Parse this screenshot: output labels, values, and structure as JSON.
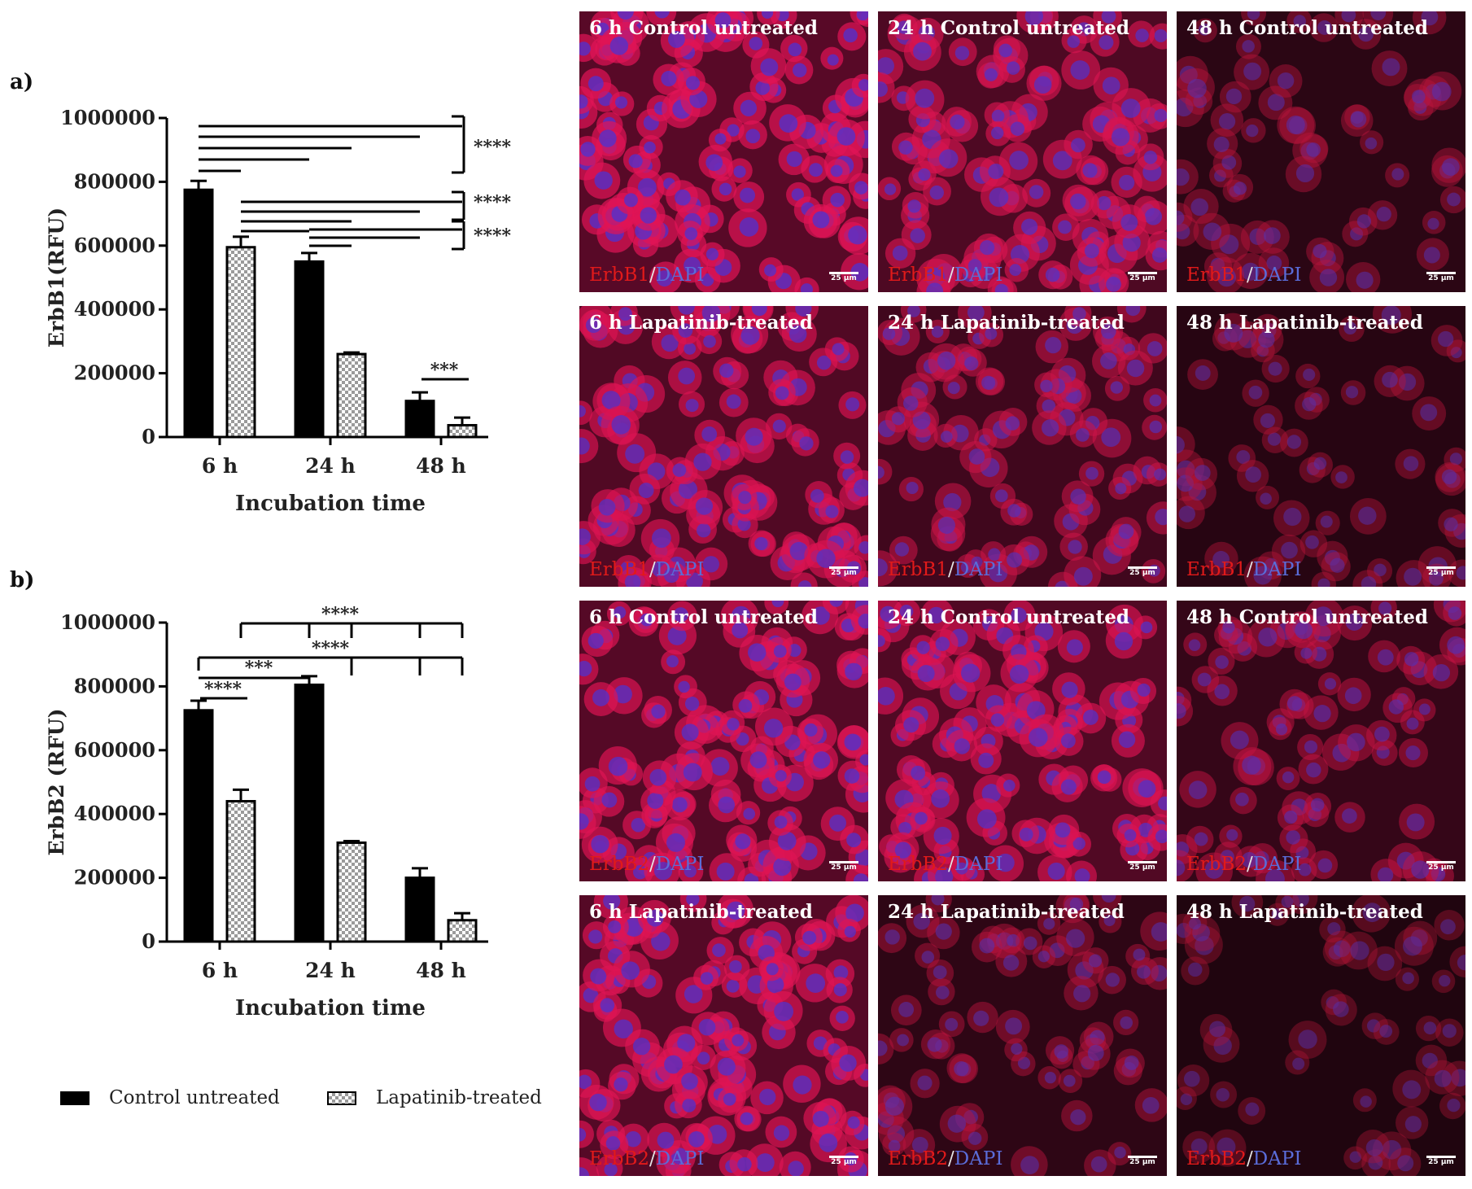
{
  "panels": [
    {
      "label": "a)",
      "top": 0
    },
    {
      "label": "b)",
      "top": 0
    }
  ],
  "legend": {
    "control": "Control untreated",
    "lapatinib": "Lapatinib-treated"
  },
  "chart_data": [
    {
      "type": "bar",
      "panel": "a)",
      "ylabel": "ErbB1(RFU)",
      "xlabel": "Incubation time",
      "categories": [
        "6 h",
        "24 h",
        "48 h"
      ],
      "ylim": [
        0,
        1000000
      ],
      "yticks": [
        0,
        200000,
        400000,
        600000,
        800000,
        1000000
      ],
      "series": [
        {
          "name": "Control untreated",
          "values": [
            775000,
            550000,
            113000
          ],
          "errors": [
            28000,
            27000,
            27000
          ]
        },
        {
          "name": "Lapatinib-treated",
          "values": [
            595000,
            260000,
            37000
          ],
          "errors": [
            33000,
            5000,
            24000
          ]
        }
      ],
      "significance": [
        {
          "label": "****",
          "groups": "6 h Control untreated vs all other groups"
        },
        {
          "label": "****",
          "groups": "6 h Lapatinib-treated vs 24 h and 48 h groups"
        },
        {
          "label": "****",
          "groups": "24 h Control untreated vs 24 h Lapatinib-treated and 48 h groups"
        },
        {
          "label": "***",
          "groups": "48 h Control untreated vs 48 h Lapatinib-treated"
        }
      ]
    },
    {
      "type": "bar",
      "panel": "b)",
      "ylabel": "ErbB2 (RFU)",
      "xlabel": "Incubation time",
      "categories": [
        "6 h",
        "24 h",
        "48 h"
      ],
      "ylim": [
        0,
        1000000
      ],
      "yticks": [
        0,
        200000,
        400000,
        600000,
        800000,
        1000000
      ],
      "series": [
        {
          "name": "Control untreated",
          "values": [
            725000,
            805000,
            200000
          ],
          "errors": [
            30000,
            27000,
            30000
          ]
        },
        {
          "name": "Lapatinib-treated",
          "values": [
            440000,
            310000,
            67000
          ],
          "errors": [
            36000,
            5000,
            22000
          ]
        }
      ],
      "significance": [
        {
          "label": "****",
          "groups": "6 h Lapatinib-treated vs 24 h and 48 h groups"
        },
        {
          "label": "****",
          "groups": "6 h Control untreated vs 24 h Lapatinib-treated and 48 h groups"
        },
        {
          "label": "***",
          "groups": "6 h Control untreated vs 24 h Control untreated"
        },
        {
          "label": "****",
          "groups": "6 h Control untreated vs 6 h Lapatinib-treated"
        }
      ]
    }
  ],
  "micrographs": [
    {
      "title": "6 h Control untreated",
      "marker": "ErbB1",
      "intensity": 0.9
    },
    {
      "title": "24 h Control untreated",
      "marker": "ErbB1",
      "intensity": 0.75
    },
    {
      "title": "48 h Control untreated",
      "marker": "ErbB1",
      "intensity": 0.25
    },
    {
      "title": "6 h Lapatinib-treated",
      "marker": "ErbB1",
      "intensity": 0.8
    },
    {
      "title": "24 h Lapatinib-treated",
      "marker": "ErbB1",
      "intensity": 0.55
    },
    {
      "title": "48 h Lapatinib-treated",
      "marker": "ErbB1",
      "intensity": 0.2
    },
    {
      "title": "6 h Control untreated",
      "marker": "ErbB2",
      "intensity": 0.85
    },
    {
      "title": "24 h Control untreated",
      "marker": "ErbB2",
      "intensity": 0.8
    },
    {
      "title": "48 h Control untreated",
      "marker": "ErbB2",
      "intensity": 0.4
    },
    {
      "title": "6 h Lapatinib-treated",
      "marker": "ErbB2",
      "intensity": 0.85
    },
    {
      "title": "24 h Lapatinib-treated",
      "marker": "ErbB2",
      "intensity": 0.3
    },
    {
      "title": "48 h Lapatinib-treated",
      "marker": "ErbB2",
      "intensity": 0.1
    }
  ],
  "stain": {
    "separator": "/",
    "counterstain": "DAPI"
  },
  "scale_label": "25 µm",
  "colors": {
    "control": "#000000",
    "lapatinib_check": "#9a9a9a",
    "marker": "#e11a1a",
    "dapi": "#5a6cd8"
  }
}
